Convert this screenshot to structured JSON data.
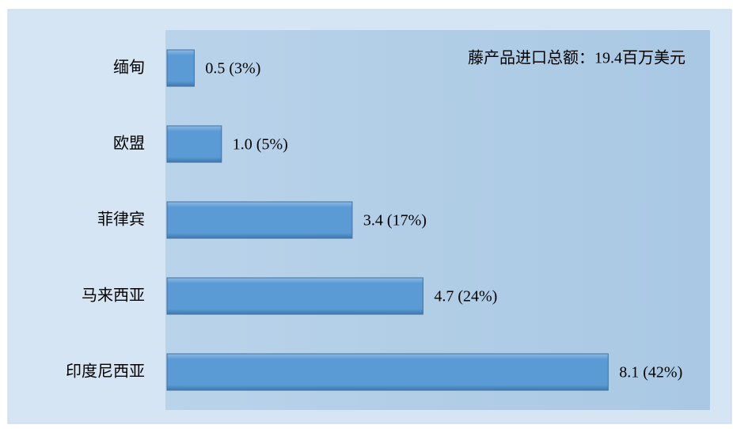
{
  "chart_data": {
    "type": "bar",
    "orientation": "horizontal",
    "annotation": "藤产品进口总额：19.4百万美元",
    "categories": [
      "缅甸",
      "欧盟",
      "菲律宾",
      "马来西亚",
      "印度尼西亚"
    ],
    "values": [
      0.5,
      1.0,
      3.4,
      4.7,
      8.1
    ],
    "value_labels": [
      "0.5 (3%)",
      "1.0 (5%)",
      "3.4 (17%)",
      "4.7 (24%)",
      "8.1 (42%)"
    ],
    "color": "#5b9bd5",
    "xlim": [
      0,
      10
    ]
  }
}
